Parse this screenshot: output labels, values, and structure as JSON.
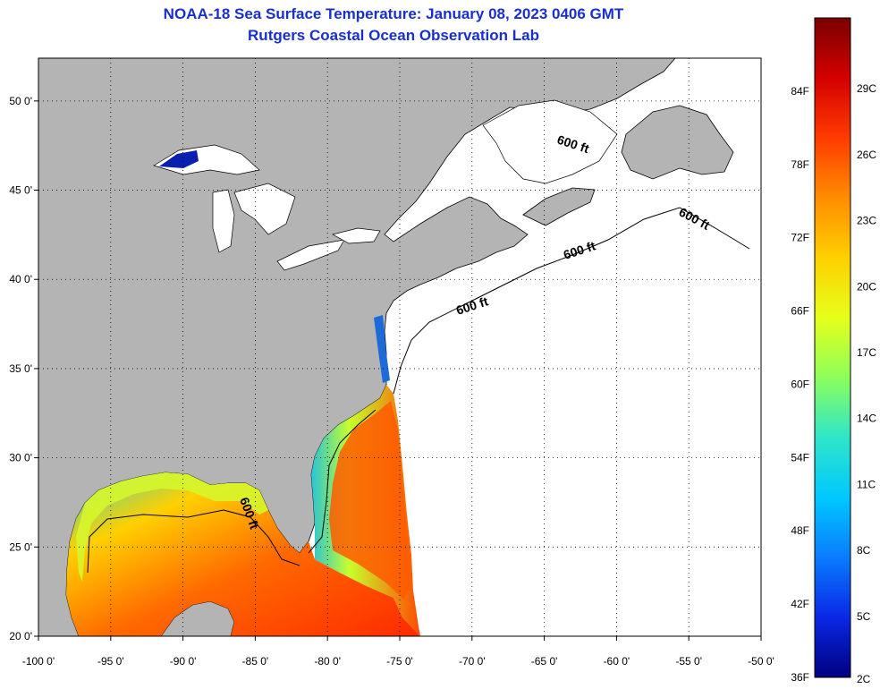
{
  "title": "NOAA-18 Sea Surface Temperature:  January 08, 2023 0406 GMT",
  "subtitle": "Rutgers Coastal Ocean Observation Lab",
  "map": {
    "lon_range": [
      -100,
      -50
    ],
    "lat_range": [
      20,
      52.4
    ],
    "lon_ticks": [
      -100,
      -95,
      -90,
      -85,
      -80,
      -75,
      -70,
      -65,
      -60,
      -55,
      -50
    ],
    "lon_tick_labels": [
      "-100 0'",
      "-95 0'",
      "-90 0'",
      "-85 0'",
      "-80 0'",
      "-75 0'",
      "-70 0'",
      "-65 0'",
      "-60 0'",
      "-55 0'",
      "-50 0'"
    ],
    "lat_ticks": [
      20,
      25,
      30,
      35,
      40,
      45,
      50
    ],
    "lat_tick_labels": [
      "20 0'",
      "25 0'",
      "30 0'",
      "35 0'",
      "40 0'",
      "45 0'",
      "50 0'"
    ],
    "grid": "dotted",
    "land_color": "#b4b4b4",
    "water_nodata_color": "#ffffff",
    "contour_labels": [
      "600 ft",
      "600 ft",
      "600 ft",
      "600 ft",
      "600 ft"
    ]
  },
  "colorbar": {
    "f_labels": [
      "84F",
      "78F",
      "72F",
      "66F",
      "60F",
      "54F",
      "48F",
      "42F",
      "36F"
    ],
    "c_labels": [
      "29C",
      "26C",
      "23C",
      "20C",
      "17C",
      "14C",
      "11C",
      "8C",
      "5C",
      "2C"
    ],
    "colors": [
      "#7a0000",
      "#d40000",
      "#ff3b00",
      "#ff8c00",
      "#ffd000",
      "#e6ff1a",
      "#8cff5a",
      "#2ee6c8",
      "#00c8ff",
      "#0a7cff",
      "#0a28e6",
      "#000080"
    ]
  }
}
